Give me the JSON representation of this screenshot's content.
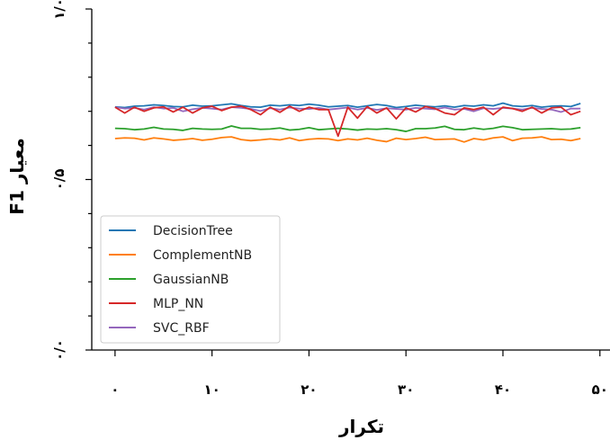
{
  "chart_data": {
    "type": "line",
    "title": "",
    "xlabel": "تکرار",
    "ylabel": "معیار F1",
    "xlim": [
      -2.4,
      49
    ],
    "ylim": [
      0,
      1.0
    ],
    "xticks": [
      0,
      10,
      20,
      30,
      40,
      50
    ],
    "xtick_labels": [
      "۰",
      "۱۰",
      "۲۰",
      "۳۰",
      "۴۰",
      "۵۰"
    ],
    "yticks": [
      0,
      0.5,
      1.0
    ],
    "ytick_labels": [
      "۰/۰",
      "۰/۵",
      "۱/۰"
    ],
    "legend_position": "lower-left",
    "grid": false,
    "series": [
      {
        "name": "DecisionTree",
        "color": "#1f77b4",
        "values": [
          0.713,
          0.711,
          0.715,
          0.716,
          0.719,
          0.717,
          0.714,
          0.713,
          0.718,
          0.715,
          0.716,
          0.719,
          0.722,
          0.717,
          0.713,
          0.712,
          0.718,
          0.716,
          0.719,
          0.717,
          0.721,
          0.718,
          0.713,
          0.715,
          0.717,
          0.712,
          0.716,
          0.72,
          0.717,
          0.711,
          0.714,
          0.718,
          0.715,
          0.713,
          0.716,
          0.712,
          0.717,
          0.715,
          0.719,
          0.716,
          0.724,
          0.716,
          0.714,
          0.717,
          0.712,
          0.715,
          0.716,
          0.714,
          0.723
        ]
      },
      {
        "name": "ComplementNB",
        "color": "#ff7f0e",
        "values": [
          0.62,
          0.622,
          0.621,
          0.616,
          0.622,
          0.619,
          0.615,
          0.617,
          0.62,
          0.615,
          0.618,
          0.623,
          0.625,
          0.617,
          0.614,
          0.616,
          0.619,
          0.616,
          0.622,
          0.614,
          0.618,
          0.62,
          0.619,
          0.614,
          0.619,
          0.616,
          0.621,
          0.615,
          0.611,
          0.621,
          0.617,
          0.62,
          0.624,
          0.617,
          0.618,
          0.619,
          0.61,
          0.62,
          0.616,
          0.622,
          0.625,
          0.614,
          0.621,
          0.622,
          0.625,
          0.617,
          0.618,
          0.614,
          0.62
        ]
      },
      {
        "name": "GaussianNB",
        "color": "#2ca02c",
        "values": [
          0.65,
          0.649,
          0.646,
          0.648,
          0.653,
          0.648,
          0.647,
          0.644,
          0.65,
          0.648,
          0.647,
          0.648,
          0.657,
          0.65,
          0.65,
          0.647,
          0.648,
          0.651,
          0.645,
          0.647,
          0.652,
          0.646,
          0.648,
          0.65,
          0.648,
          0.645,
          0.648,
          0.647,
          0.649,
          0.646,
          0.641,
          0.649,
          0.649,
          0.651,
          0.656,
          0.647,
          0.646,
          0.651,
          0.647,
          0.65,
          0.656,
          0.652,
          0.646,
          0.647,
          0.648,
          0.649,
          0.647,
          0.648,
          0.652
        ]
      },
      {
        "name": "MLP_NN",
        "color": "#d62728",
        "values": [
          0.712,
          0.695,
          0.712,
          0.7,
          0.71,
          0.713,
          0.698,
          0.712,
          0.695,
          0.71,
          0.715,
          0.702,
          0.712,
          0.715,
          0.705,
          0.69,
          0.712,
          0.697,
          0.715,
          0.7,
          0.712,
          0.705,
          0.705,
          0.627,
          0.712,
          0.68,
          0.714,
          0.695,
          0.71,
          0.678,
          0.71,
          0.698,
          0.714,
          0.708,
          0.695,
          0.69,
          0.71,
          0.705,
          0.712,
          0.69,
          0.712,
          0.708,
          0.7,
          0.712,
          0.695,
          0.71,
          0.712,
          0.69,
          0.7
        ]
      },
      {
        "name": "SVC_RBF",
        "color": "#9467bd",
        "values": [
          0.712,
          0.708,
          0.71,
          0.705,
          0.712,
          0.708,
          0.71,
          0.7,
          0.706,
          0.71,
          0.708,
          0.705,
          0.712,
          0.71,
          0.707,
          0.701,
          0.709,
          0.705,
          0.711,
          0.708,
          0.707,
          0.71,
          0.705,
          0.708,
          0.711,
          0.705,
          0.71,
          0.704,
          0.709,
          0.707,
          0.705,
          0.71,
          0.708,
          0.706,
          0.711,
          0.705,
          0.707,
          0.7,
          0.709,
          0.707,
          0.71,
          0.708,
          0.705,
          0.71,
          0.707,
          0.705,
          0.698,
          0.708,
          0.708
        ]
      }
    ]
  }
}
